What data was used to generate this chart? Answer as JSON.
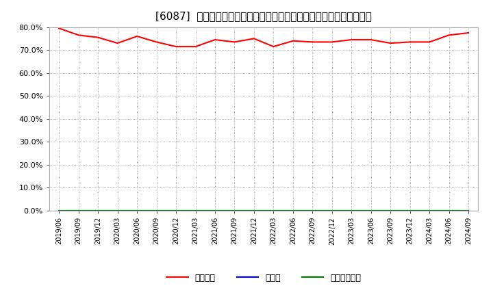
{
  "title": "[6087]  自己資本、のれん、繰延税金資産の総資産に対する比率の推移",
  "dates": [
    "2019/06",
    "2019/09",
    "2019/12",
    "2020/03",
    "2020/06",
    "2020/09",
    "2020/12",
    "2021/03",
    "2021/06",
    "2021/09",
    "2021/12",
    "2022/03",
    "2022/06",
    "2022/09",
    "2022/12",
    "2023/03",
    "2023/06",
    "2023/09",
    "2023/12",
    "2024/03",
    "2024/06",
    "2024/09"
  ],
  "equity_ratio": [
    79.5,
    76.5,
    75.5,
    73.0,
    76.0,
    73.5,
    71.5,
    71.5,
    74.5,
    73.5,
    75.0,
    71.5,
    74.0,
    73.5,
    73.5,
    74.5,
    74.5,
    73.0,
    73.5,
    73.5,
    76.5,
    77.5
  ],
  "noren_ratio": [
    0.0,
    0.0,
    0.0,
    0.0,
    0.0,
    0.0,
    0.0,
    0.0,
    0.0,
    0.0,
    0.0,
    0.0,
    0.0,
    0.0,
    0.0,
    0.0,
    0.0,
    0.0,
    0.0,
    0.0,
    0.0,
    0.0
  ],
  "deferred_tax_ratio": [
    0.0,
    0.0,
    0.0,
    0.0,
    0.0,
    0.0,
    0.0,
    0.0,
    0.0,
    0.0,
    0.0,
    0.0,
    0.0,
    0.0,
    0.0,
    0.0,
    0.0,
    0.0,
    0.0,
    0.0,
    0.0,
    0.0
  ],
  "line_color_equity": "#ff0000",
  "line_color_noren": "#0000cc",
  "line_color_deferred": "#007700",
  "ylim": [
    0.0,
    80.0
  ],
  "yticks": [
    0.0,
    10.0,
    20.0,
    30.0,
    40.0,
    50.0,
    60.0,
    70.0,
    80.0
  ],
  "bg_color": "#ffffff",
  "plot_bg_color": "#ffffff",
  "grid_color": "#999999",
  "legend_labels": [
    "自己資本",
    "のれん",
    "繰延税金資産"
  ],
  "title_fontsize": 11
}
